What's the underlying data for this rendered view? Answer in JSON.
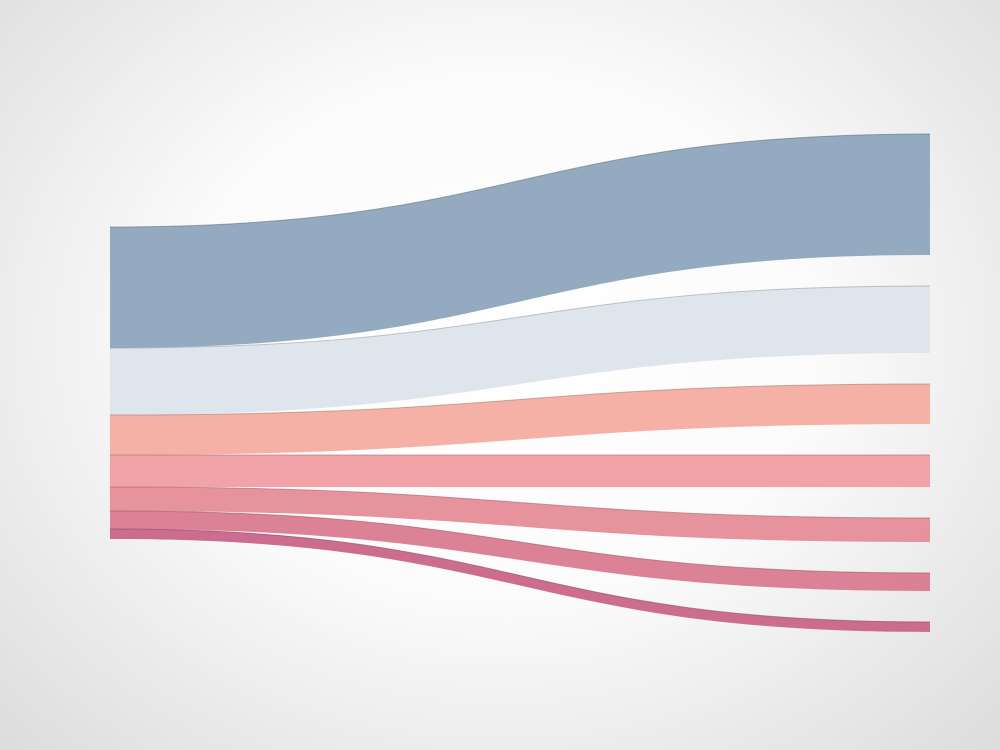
{
  "chart_data": {
    "type": "sankey",
    "values": [
      121,
      67,
      40,
      32,
      24,
      18,
      10
    ],
    "colors": [
      "#8ea5bd",
      "#dde4eb",
      "#f6ada2",
      "#f19ea3",
      "#e68d99",
      "#da7b91",
      "#c9658a"
    ]
  }
}
